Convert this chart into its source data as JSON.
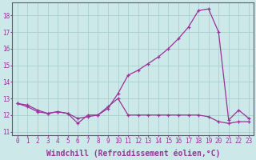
{
  "background_color": "#cce8e8",
  "grid_color": "#aacece",
  "line_color": "#993399",
  "title": "",
  "xlabel": "Windchill (Refroidissement éolien,°C)",
  "x_values": [
    0,
    1,
    2,
    3,
    4,
    5,
    6,
    7,
    8,
    9,
    10,
    11,
    12,
    13,
    14,
    15,
    16,
    17,
    18,
    19,
    20,
    21,
    22,
    23
  ],
  "line1_y": [
    12.7,
    12.6,
    12.3,
    12.1,
    12.2,
    12.1,
    11.5,
    12.0,
    12.0,
    12.4,
    13.3,
    14.4,
    14.7,
    15.1,
    15.5,
    16.0,
    16.6,
    17.3,
    18.3,
    18.4,
    17.0,
    11.7,
    12.3,
    11.8
  ],
  "line2_y": [
    12.7,
    12.5,
    12.2,
    12.1,
    12.2,
    12.1,
    11.8,
    11.9,
    12.0,
    12.5,
    13.0,
    12.0,
    12.0,
    12.0,
    12.0,
    12.0,
    12.0,
    12.0,
    12.0,
    11.9,
    11.6,
    11.5,
    11.6,
    11.6
  ],
  "ylim": [
    10.8,
    18.8
  ],
  "xlim": [
    -0.5,
    23.5
  ],
  "yticks": [
    11,
    12,
    13,
    14,
    15,
    16,
    17,
    18
  ],
  "xticks": [
    0,
    1,
    2,
    3,
    4,
    5,
    6,
    7,
    8,
    9,
    10,
    11,
    12,
    13,
    14,
    15,
    16,
    17,
    18,
    19,
    20,
    21,
    22,
    23
  ],
  "tick_color": "#993399",
  "tick_fontsize": 5.5,
  "xlabel_fontsize": 7.0,
  "linewidth": 0.9,
  "markersize": 3.5
}
